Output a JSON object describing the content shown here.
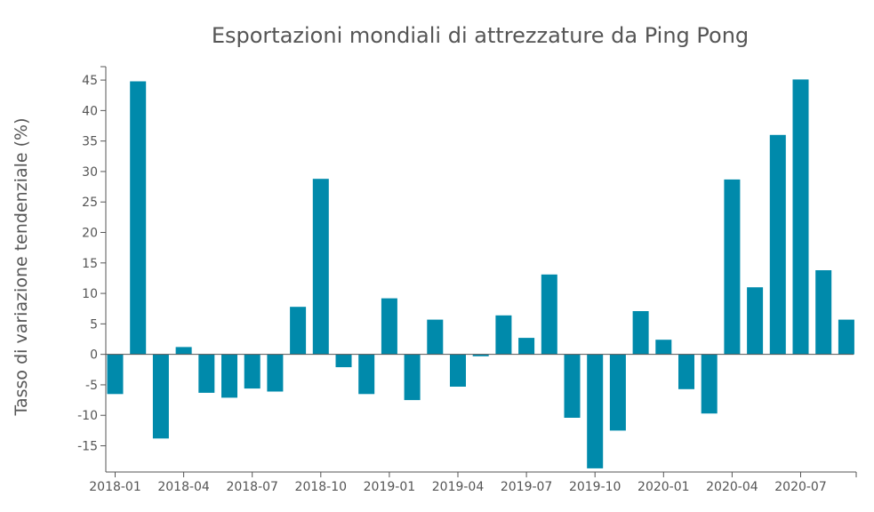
{
  "chart_data": {
    "type": "bar",
    "title": "Esportazioni mondiali di attrezzature da Ping Pong",
    "xlabel": "",
    "ylabel": "Tasso di variazione tendenziale (%)",
    "ylim": [
      -19.3,
      47.2
    ],
    "yticks": [
      -15,
      -10,
      -5,
      0,
      5,
      10,
      15,
      20,
      25,
      30,
      35,
      40,
      45
    ],
    "x_tick_labels": [
      "2018-01",
      "2018-04",
      "2018-07",
      "2018-10",
      "2019-01",
      "2019-04",
      "2019-07",
      "2019-10",
      "2020-01",
      "2020-04",
      "2020-07"
    ],
    "categories": [
      "2018-01",
      "2018-02",
      "2018-03",
      "2018-04",
      "2018-05",
      "2018-06",
      "2018-07",
      "2018-08",
      "2018-09",
      "2018-10",
      "2018-11",
      "2018-12",
      "2019-01",
      "2019-02",
      "2019-03",
      "2019-04",
      "2019-05",
      "2019-06",
      "2019-07",
      "2019-08",
      "2019-09",
      "2019-10",
      "2019-11",
      "2019-12",
      "2020-01",
      "2020-02",
      "2020-03",
      "2020-04",
      "2020-05",
      "2020-06",
      "2020-07",
      "2020-08",
      "2020-09"
    ],
    "values": [
      -6.5,
      44.8,
      -13.8,
      1.2,
      -6.3,
      -7.1,
      -5.6,
      -6.1,
      7.8,
      28.8,
      -2.1,
      -6.5,
      9.2,
      -7.5,
      5.7,
      -5.3,
      -0.3,
      6.4,
      2.7,
      13.1,
      -10.4,
      -18.7,
      -12.5,
      7.1,
      2.4,
      -5.7,
      -9.7,
      28.7,
      11.0,
      36.0,
      45.1,
      13.8,
      5.7
    ],
    "bar_color": "#008aab",
    "axis_color": "#555555",
    "grid": false,
    "legend": "none"
  }
}
